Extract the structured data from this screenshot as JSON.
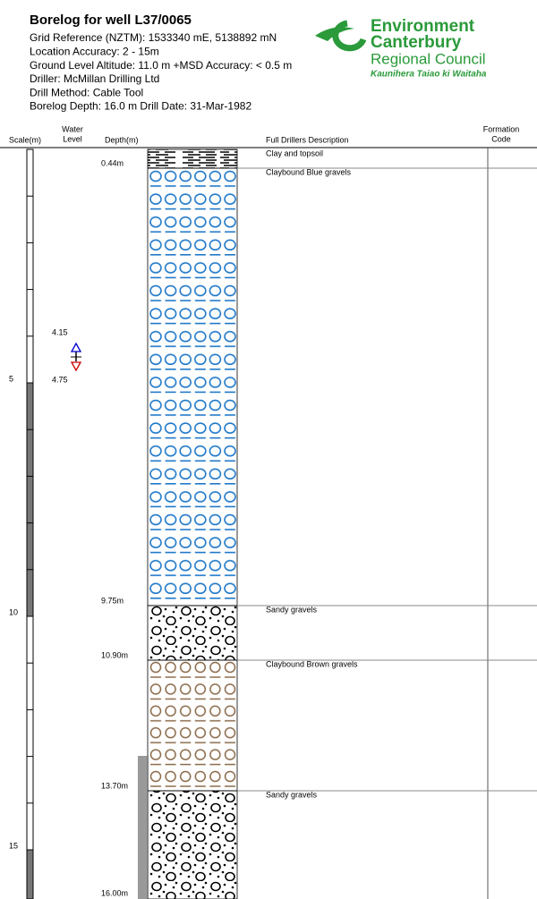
{
  "header": {
    "title": "Borelog for well L37/0065",
    "lines": [
      "Grid Reference (NZTM):  1533340 mE, 5138892 mN",
      "Location Accuracy:  2 - 15m",
      "Ground Level Altitude:  11.0 m +MSD Accuracy: < 0.5 m",
      "Driller:  McMillan Drilling Ltd",
      "Drill Method:  Cable Tool",
      "Borelog Depth:  16.0 m    Drill Date:  31-Mar-1982"
    ]
  },
  "logo": {
    "line1": "Environment",
    "line2": "Canterbury",
    "line3": "Regional Council",
    "tagline": "Kaunihera Taiao ki Waitaha"
  },
  "columns": {
    "scale": "Scale(m)",
    "water_level": [
      "Water",
      "Level"
    ],
    "depth": "Depth(m)",
    "description": "Full Drillers Description",
    "formation": [
      "Formation",
      "Code"
    ]
  },
  "scale_labels": [
    "5",
    "10",
    "15"
  ],
  "water_levels": [
    "4.15",
    "4.75"
  ],
  "layers": [
    {
      "depth": "0.44m",
      "description": "Clay and topsoil"
    },
    {
      "depth": "9.75m",
      "description": "Claybound Blue gravels"
    },
    {
      "depth": "10.90m",
      "description": "Sandy gravels"
    },
    {
      "depth": "13.70m",
      "description": "Claybound Brown gravels"
    },
    {
      "depth": "16.00m",
      "description": "Sandy gravels"
    }
  ]
}
